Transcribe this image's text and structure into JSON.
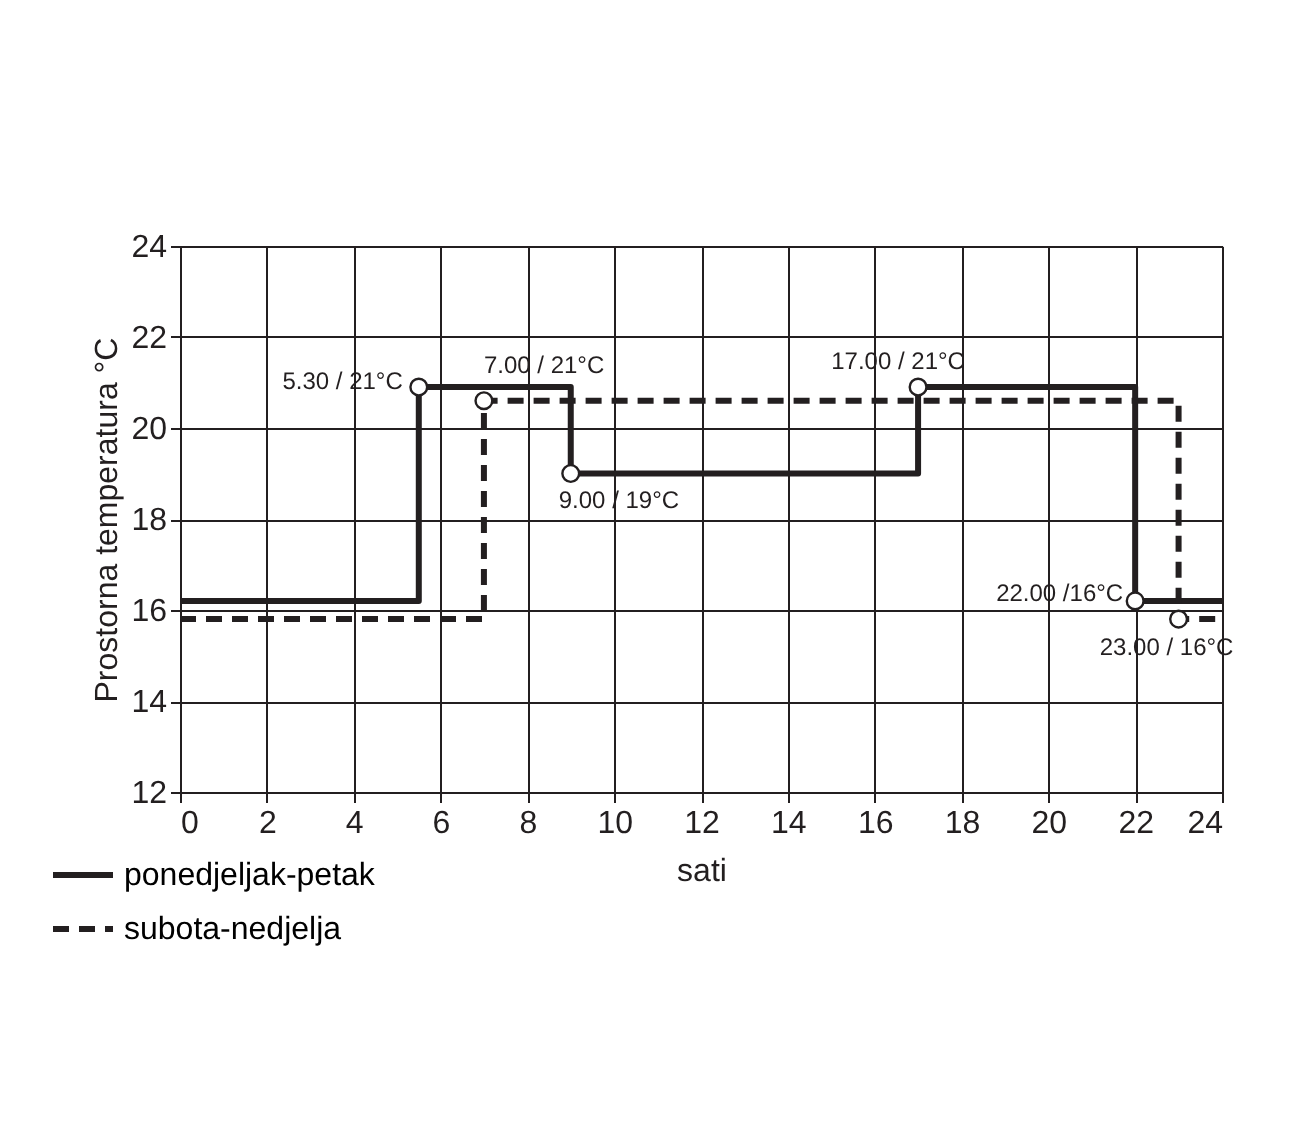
{
  "chart_data": {
    "type": "step",
    "xlabel": "sati",
    "ylabel": "Prostorna temperatura °C",
    "series": [
      {
        "name": "ponedjeljak-petak",
        "color": "#231f20",
        "line_style": "solid",
        "x": [
          0,
          5.5,
          9,
          17,
          22,
          24
        ],
        "values": [
          16.2,
          20.9,
          19,
          20.9,
          16.2,
          16.2
        ]
      },
      {
        "name": "subota-nedjelja",
        "color": "#231f20",
        "line_style": "dashed",
        "x": [
          0,
          7,
          23,
          24
        ],
        "values": [
          15.8,
          20.6,
          15.8,
          15.8
        ]
      }
    ],
    "annotations": [
      {
        "text": "5.30 / 21°C",
        "x": 5.5,
        "y": 20.9
      },
      {
        "text": "7.00 / 21°C",
        "x": 7,
        "y": 20.6
      },
      {
        "text": "9.00 / 19°C",
        "x": 9,
        "y": 19
      },
      {
        "text": "17.00 / 21°C",
        "x": 17,
        "y": 20.9
      },
      {
        "text": "22.00 /16°C",
        "x": 22,
        "y": 16.2
      },
      {
        "text": "23.00 / 16°C",
        "x": 23,
        "y": 15.8
      }
    ],
    "xlim": [
      0,
      24
    ],
    "xticks": [
      0,
      2,
      4,
      6,
      8,
      10,
      12,
      14,
      16,
      18,
      20,
      22,
      24
    ],
    "ylim": [
      12,
      24
    ],
    "yticks": [
      12,
      14,
      16,
      18,
      20,
      22,
      24
    ],
    "grid": true,
    "legend": "bottom"
  }
}
